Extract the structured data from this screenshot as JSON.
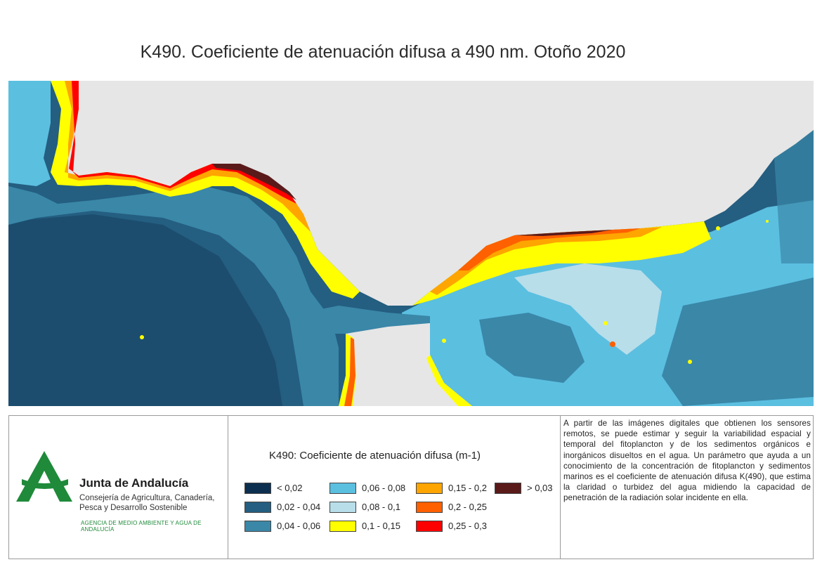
{
  "title": "K490. Coeficiente de atenuación difusa a 490 nm. Otoño 2020",
  "colors": {
    "land": "#e6e6e6",
    "c1": "#0d2f4f",
    "c2": "#245e80",
    "c3": "#3a87a8",
    "c4": "#5bbfe0",
    "c5": "#b8deea",
    "c6": "#ffff00",
    "c7": "#ffa500",
    "c8": "#ff6000",
    "c9": "#ff0000",
    "c10": "#5a1a1a"
  },
  "logo": {
    "title": "Junta de Andalucía",
    "subtitle": "Consejería de Agricultura, Canadería, Pesca y Desarrollo Sostenible",
    "agency": "AGENCIA DE MEDIO AMBIENTE Y AGUA DE ANDALUCÍA"
  },
  "legend": {
    "title": "K490: Coeficiente de atenuación difusa (m-1)",
    "items": [
      {
        "label": "< 0,02",
        "color": "#0d2f4f"
      },
      {
        "label": "0,02 - 0,04",
        "color": "#245e80"
      },
      {
        "label": "0,04 - 0,06",
        "color": "#3a87a8"
      },
      {
        "label": "0,06 - 0,08",
        "color": "#5bbfe0"
      },
      {
        "label": "0,08 - 0,1",
        "color": "#b8deea"
      },
      {
        "label": "0,1 - 0,15",
        "color": "#ffff00"
      },
      {
        "label": "0,15 - 0,2",
        "color": "#ffa500"
      },
      {
        "label": "0,2 - 0,25",
        "color": "#ff6000"
      },
      {
        "label": "0,25 - 0,3",
        "color": "#ff0000"
      },
      {
        "label": "> 0,03",
        "color": "#5a1a1a"
      }
    ]
  },
  "description": "A partir de las imágenes digitales que obtienen los sensores remotos, se puede estimar y seguir la variabilidad espacial y temporal del fitoplancton y de los sedimentos orgánicos e inorgánicos disueltos en el agua. Un parámetro que ayuda a un conocimiento de la concentración de fitoplancton y sedimentos marinos es el coeficiente de atenuación difusa K(490), que estima la claridad o turbidez del agua midiendo la capacidad de penetración de la radiación solar incidente en ella."
}
